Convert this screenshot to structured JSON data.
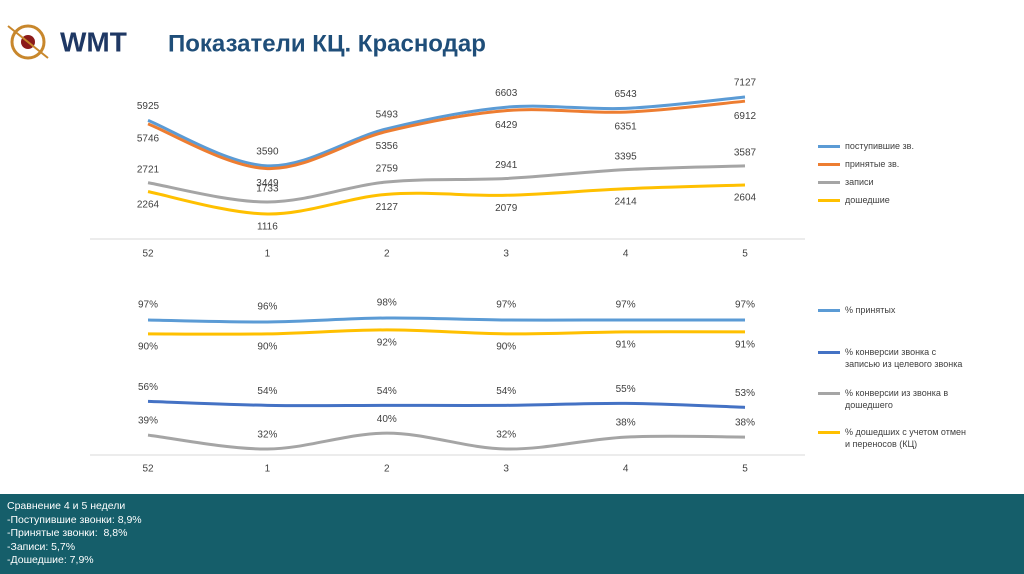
{
  "header": {
    "logo": "WMT",
    "title": "Показатели КЦ. Краснодар"
  },
  "chart_data": [
    {
      "type": "line",
      "categories": [
        "52",
        "1",
        "2",
        "3",
        "4",
        "5"
      ],
      "series": [
        {
          "name": "поступившие зв.",
          "color": "#5b9bd5",
          "values": [
            5925,
            3590,
            5493,
            6603,
            6543,
            7127
          ]
        },
        {
          "name": "принятые зв.",
          "color": "#ed7d31",
          "values": [
            5746,
            3449,
            5356,
            6429,
            6351,
            6912
          ]
        },
        {
          "name": "записи",
          "color": "#a5a5a5",
          "values": [
            2721,
            1733,
            2759,
            2941,
            3395,
            3587
          ]
        },
        {
          "name": "дошедшие",
          "color": "#ffc000",
          "values": [
            2264,
            1116,
            2127,
            2079,
            2414,
            2604
          ]
        }
      ]
    },
    {
      "type": "line",
      "categories": [
        "52",
        "1",
        "2",
        "3",
        "4",
        "5"
      ],
      "series": [
        {
          "name": "% принятых",
          "color": "#5b9bd5",
          "values": [
            97,
            96,
            98,
            97,
            97,
            97
          ],
          "value_labels": [
            "97%",
            "96%",
            "98%",
            "97%",
            "97%",
            "97%"
          ]
        },
        {
          "name": "% конверсии звонка с записью из целевого звонка",
          "color": "#4472c4",
          "values": [
            56,
            54,
            54,
            54,
            55,
            53
          ],
          "value_labels": [
            "56%",
            "54%",
            "54%",
            "54%",
            "55%",
            "53%"
          ]
        },
        {
          "name": "% конверсии из звонка в дошедшего",
          "color": "#a5a5a5",
          "values": [
            39,
            32,
            40,
            32,
            38,
            38
          ],
          "value_labels": [
            "39%",
            "32%",
            "40%",
            "32%",
            "38%",
            "38%"
          ]
        },
        {
          "name": "% дошедших с учетом отмен и переносов (КЦ)",
          "color": "#ffc000",
          "values": [
            90,
            90,
            92,
            90,
            91,
            91
          ],
          "value_labels": [
            "90%",
            "90%",
            "92%",
            "90%",
            "91%",
            "91%"
          ]
        }
      ]
    }
  ],
  "footer": {
    "lines": [
      "Сравнение 4 и 5 недели",
      "-Поступившие звонки: 8,9%",
      "-Принятые звонки:  8,8%",
      "-Записи: 5,7%",
      "-Дошедшие: 7,9%"
    ]
  }
}
